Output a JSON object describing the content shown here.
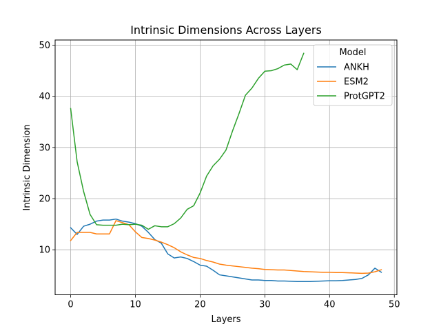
{
  "chart_data": {
    "type": "line",
    "title": "Intrinsic Dimensions Across Layers",
    "xlabel": "Layers",
    "ylabel": "Intrinsic Dimension",
    "xlim": [
      -2.4,
      50.4
    ],
    "ylim": [
      1.2,
      51.0
    ],
    "xticks": [
      0,
      10,
      20,
      30,
      40,
      50
    ],
    "yticks": [
      10,
      20,
      30,
      40,
      50
    ],
    "grid": true,
    "legend": {
      "title": "Model",
      "position": "top-right"
    },
    "series": [
      {
        "name": "ANKH",
        "color": "#1f77b4",
        "x": [
          0,
          1,
          2,
          3,
          4,
          5,
          6,
          7,
          8,
          9,
          10,
          11,
          12,
          13,
          14,
          15,
          16,
          17,
          18,
          19,
          20,
          21,
          22,
          23,
          24,
          25,
          26,
          27,
          28,
          29,
          30,
          31,
          32,
          33,
          34,
          35,
          36,
          37,
          38,
          39,
          40,
          41,
          42,
          43,
          44,
          45,
          46,
          47,
          48
        ],
        "y": [
          14.3,
          13.0,
          14.6,
          15.0,
          15.6,
          15.8,
          15.8,
          16.0,
          15.6,
          15.4,
          15.1,
          14.6,
          13.4,
          12.0,
          11.3,
          9.2,
          8.4,
          8.6,
          8.3,
          7.7,
          7.0,
          6.8,
          6.0,
          5.1,
          4.9,
          4.7,
          4.5,
          4.3,
          4.1,
          4.1,
          4.0,
          4.0,
          3.9,
          3.9,
          3.85,
          3.8,
          3.8,
          3.8,
          3.85,
          3.9,
          3.95,
          3.95,
          4.0,
          4.1,
          4.2,
          4.4,
          5.1,
          6.4,
          5.6
        ]
      },
      {
        "name": "ESM2",
        "color": "#ff7f0e",
        "x": [
          0,
          1,
          2,
          3,
          4,
          5,
          6,
          7,
          8,
          9,
          10,
          11,
          12,
          13,
          14,
          15,
          16,
          17,
          18,
          19,
          20,
          21,
          22,
          23,
          24,
          25,
          26,
          27,
          28,
          29,
          30,
          31,
          32,
          33,
          34,
          35,
          36,
          37,
          38,
          39,
          40,
          41,
          42,
          43,
          44,
          45,
          46,
          47,
          48
        ],
        "y": [
          11.8,
          13.4,
          13.4,
          13.4,
          13.1,
          13.1,
          13.1,
          15.7,
          15.3,
          14.9,
          13.5,
          12.4,
          12.2,
          11.9,
          11.5,
          11.0,
          10.4,
          9.6,
          9.0,
          8.5,
          8.3,
          7.9,
          7.6,
          7.2,
          7.0,
          6.85,
          6.7,
          6.55,
          6.4,
          6.3,
          6.15,
          6.1,
          6.05,
          6.05,
          5.95,
          5.85,
          5.75,
          5.7,
          5.65,
          5.6,
          5.6,
          5.55,
          5.55,
          5.5,
          5.45,
          5.4,
          5.45,
          5.7,
          6.1
        ]
      },
      {
        "name": "ProtGPT2",
        "color": "#2ca02c",
        "x": [
          0,
          1,
          2,
          3,
          4,
          5,
          6,
          7,
          8,
          9,
          10,
          11,
          12,
          13,
          14,
          15,
          16,
          17,
          18,
          19,
          20,
          21,
          22,
          23,
          24,
          25,
          26,
          27,
          28,
          29,
          30,
          31,
          32,
          33,
          34,
          35,
          36
        ],
        "y": [
          37.6,
          27.2,
          21.4,
          16.9,
          14.9,
          14.8,
          14.8,
          14.8,
          15.0,
          14.9,
          15.0,
          14.8,
          14.0,
          14.7,
          14.5,
          14.5,
          15.1,
          16.2,
          17.9,
          18.6,
          21.1,
          24.4,
          26.4,
          27.7,
          29.5,
          33.2,
          36.6,
          40.2,
          41.6,
          43.5,
          44.9,
          45.0,
          45.4,
          46.1,
          46.3,
          45.2,
          48.4
        ]
      }
    ]
  }
}
